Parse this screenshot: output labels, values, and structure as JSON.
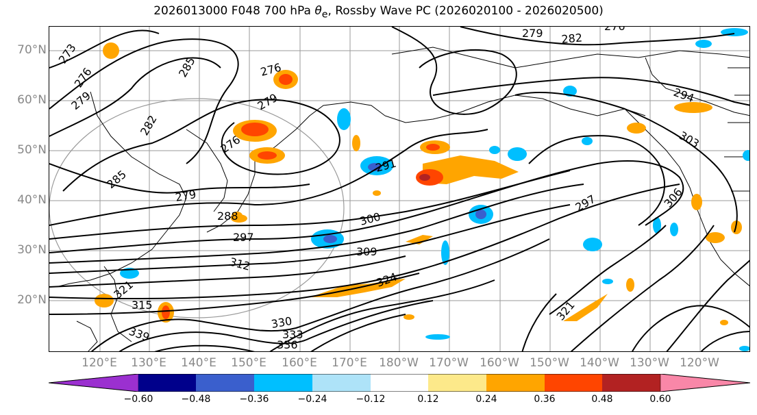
{
  "title": {
    "prefix": "2026013000 F048 700 hPa ",
    "theta": "θ",
    "sub": "e",
    "suffix": ", Rossby Wave PC (2026020100 - 2026020500)"
  },
  "lat_labels": [
    "70°N",
    "60°N",
    "50°N",
    "40°N",
    "30°N",
    "20°N"
  ],
  "lon_labels": [
    "120°E",
    "130°E",
    "140°E",
    "150°E",
    "160°E",
    "170°E",
    "180°W",
    "170°W",
    "160°W",
    "150°W",
    "140°W",
    "130°W",
    "120°W"
  ],
  "contour_labels": [
    "273",
    "276",
    "279",
    "282",
    "285",
    "276",
    "279",
    "276",
    "279",
    "285",
    "288",
    "291",
    "297",
    "300",
    "297",
    "312",
    "309",
    "315",
    "321",
    "324",
    "330",
    "333",
    "336",
    "339",
    "321",
    "306",
    "303",
    "294",
    "279",
    "282",
    "276"
  ],
  "colorbar": {
    "ticks": [
      "−0.60",
      "−0.48",
      "−0.36",
      "−0.24",
      "−0.12",
      "0.12",
      "0.24",
      "0.36",
      "0.48",
      "0.60"
    ],
    "colors": [
      "#9b30d0",
      "#00008b",
      "#3a5fcd",
      "#00bfff",
      "#aee3f8",
      "#ffffff",
      "#fde98a",
      "#ffa500",
      "#ff4500",
      "#b22222",
      "#f987a8"
    ]
  }
}
